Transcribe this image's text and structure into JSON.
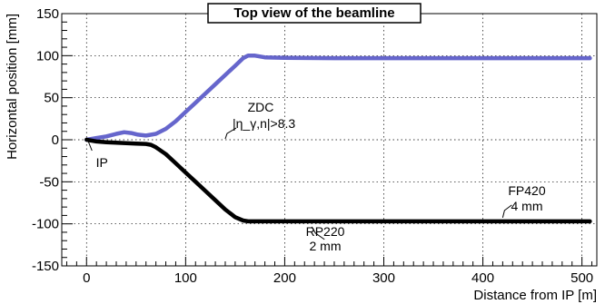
{
  "chart_data": {
    "type": "line",
    "title": "Top view of the beamline",
    "xlabel": "Distance from IP [m]",
    "ylabel": "Horizontal position [mm]",
    "xlim": [
      -25,
      515
    ],
    "ylim": [
      -150,
      150
    ],
    "x_ticks": [
      0,
      100,
      200,
      300,
      400,
      500
    ],
    "y_ticks": [
      -150,
      -100,
      -50,
      0,
      50,
      100,
      150
    ],
    "grid": true,
    "series": [
      {
        "color": "#6666cc",
        "x": [
          0,
          10,
          20,
          30,
          38,
          45,
          52,
          60,
          70,
          80,
          90,
          100,
          110,
          120,
          130,
          140,
          150,
          158,
          163,
          170,
          180,
          200,
          250,
          300,
          350,
          400,
          450,
          508
        ],
        "y": [
          0,
          2,
          4,
          7,
          9,
          8,
          6,
          5,
          7,
          13,
          22,
          33,
          44,
          55,
          66,
          77,
          88,
          97,
          100,
          100,
          98,
          97.5,
          97,
          97,
          97,
          97,
          97,
          97
        ]
      },
      {
        "color": "#000000",
        "x": [
          0,
          10,
          20,
          30,
          40,
          50,
          60,
          65,
          70,
          80,
          90,
          100,
          110,
          120,
          130,
          140,
          150,
          158,
          163,
          170,
          200,
          250,
          300,
          350,
          400,
          450,
          508
        ],
        "y": [
          0,
          -2,
          -3,
          -3.5,
          -4,
          -4.5,
          -5,
          -6,
          -9,
          -17,
          -28,
          -39,
          -50,
          -61,
          -72,
          -83,
          -92,
          -96,
          -97,
          -97,
          -97,
          -97,
          -97,
          -97,
          -97,
          -97,
          -97
        ]
      }
    ],
    "annotations": [
      {
        "id": "ip",
        "lines": [
          "IP"
        ],
        "x": 0,
        "y": 0
      },
      {
        "id": "zdc",
        "lines": [
          "ZDC",
          "|η_γ,n|>8.3"
        ],
        "x": 140,
        "y": 1
      },
      {
        "id": "rp220",
        "lines": [
          "RP220",
          "2 mm"
        ],
        "x": 220,
        "y": -97
      },
      {
        "id": "fp420",
        "lines": [
          "FP420",
          "4 mm"
        ],
        "x": 420,
        "y": -97
      }
    ]
  }
}
